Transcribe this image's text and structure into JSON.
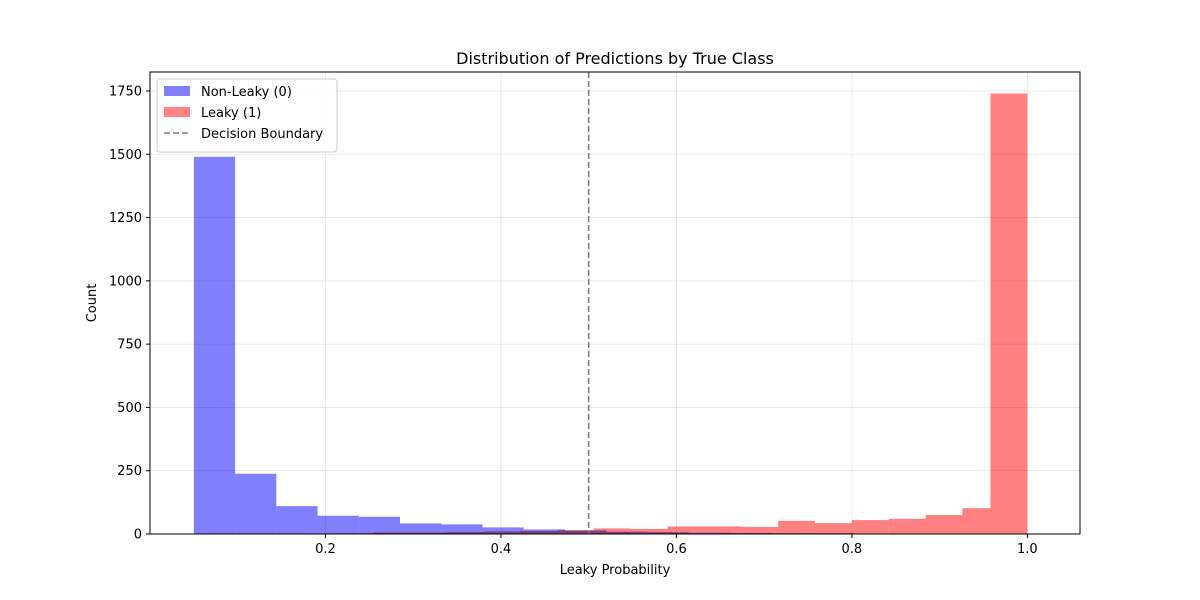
{
  "chart_data": {
    "type": "bar",
    "title": "Distribution of Predictions by True Class",
    "xlabel": "Leaky Probability",
    "ylabel": "Count",
    "xlim": [
      0.0,
      1.06
    ],
    "ylim": [
      0,
      1825
    ],
    "xticks": [
      0.2,
      0.4,
      0.6,
      0.8,
      1.0
    ],
    "xtick_labels": [
      "0.2",
      "0.4",
      "0.6",
      "0.8",
      "1.0"
    ],
    "yticks": [
      0,
      250,
      500,
      750,
      1000,
      1250,
      1500,
      1750
    ],
    "ytick_labels": [
      "0",
      "250",
      "500",
      "750",
      "1000",
      "1250",
      "1500",
      "1750"
    ],
    "grid": true,
    "legend_position": "top-left",
    "series": [
      {
        "name": "Non-Leaky (0)",
        "color": "#8080ff",
        "bins": [
          0.05,
          0.097,
          0.144,
          0.191,
          0.238,
          0.285,
          0.332,
          0.379,
          0.426,
          0.473,
          0.52,
          0.567,
          0.614,
          0.661,
          0.708,
          0.755,
          0.802,
          0.849,
          0.896,
          0.943,
          0.99
        ],
        "values": [
          1490,
          238,
          110,
          72,
          68,
          42,
          38,
          26,
          18,
          14,
          9,
          7,
          5,
          4,
          3,
          3,
          2,
          2,
          2,
          2
        ]
      },
      {
        "name": "Leaky (1)",
        "color": "#ff8080",
        "bins": [
          0.17,
          0.212,
          0.254,
          0.296,
          0.338,
          0.38,
          0.422,
          0.464,
          0.506,
          0.548,
          0.59,
          0.632,
          0.674,
          0.716,
          0.758,
          0.8,
          0.842,
          0.884,
          0.926,
          0.958,
          1.0
        ],
        "values": [
          1,
          3,
          6,
          6,
          8,
          10,
          12,
          15,
          22,
          20,
          30,
          30,
          28,
          52,
          43,
          55,
          60,
          75,
          102,
          1740
        ]
      }
    ],
    "reference_lines": [
      {
        "name": "Decision Boundary",
        "x": 0.5,
        "style": "dashed",
        "color": "#808080"
      }
    ]
  }
}
